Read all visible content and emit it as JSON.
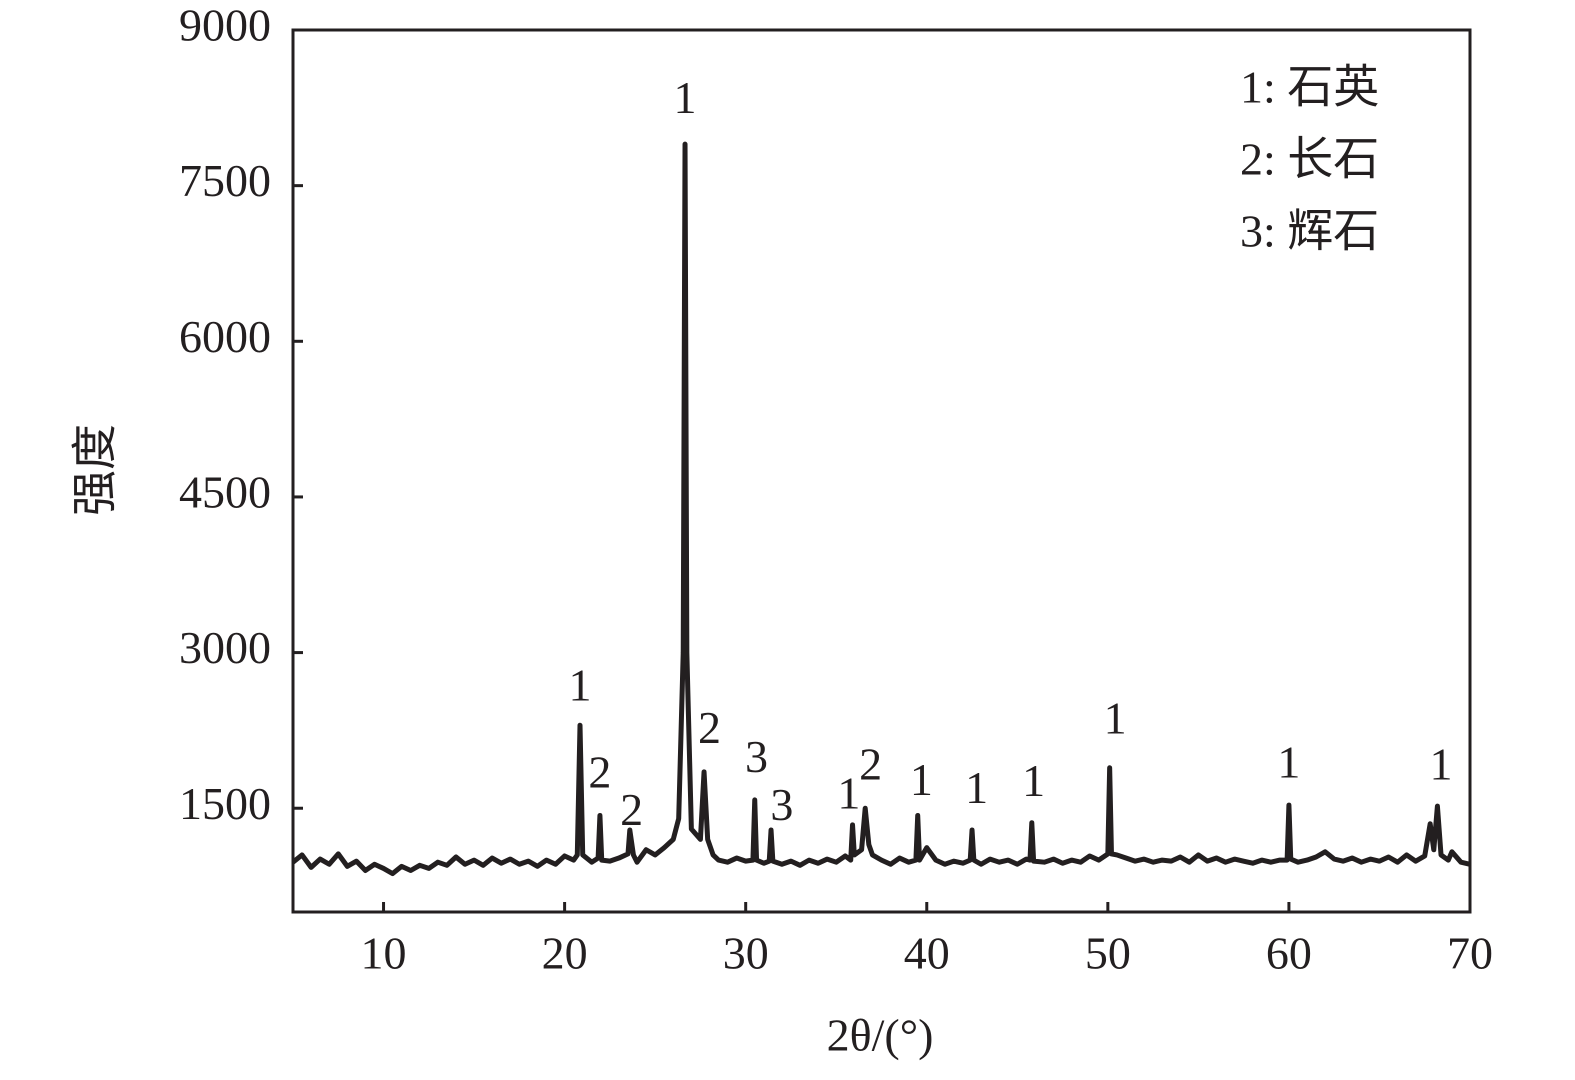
{
  "chart_data": {
    "type": "line",
    "y_label": "强度",
    "x_label": "2θ/(°)",
    "xlim": [
      5,
      70
    ],
    "xticks": [
      10,
      20,
      30,
      40,
      50,
      60,
      70
    ],
    "ylim": [
      500,
      9000
    ],
    "yticks": [
      1500,
      3000,
      4500,
      6000,
      7500,
      9000
    ],
    "color": "#231f20",
    "legend_text": [
      "1: 石英",
      "2: 长石",
      "3: 辉石"
    ],
    "annotations": [
      {
        "text": "1",
        "x": 20.85,
        "y": 2640
      },
      {
        "text": "2",
        "x": 21.95,
        "y": 1800
      },
      {
        "text": "2",
        "x": 23.7,
        "y": 1440
      },
      {
        "text": "1",
        "x": 26.65,
        "y": 8300
      },
      {
        "text": "2",
        "x": 28.0,
        "y": 2230
      },
      {
        "text": "3",
        "x": 30.6,
        "y": 1950
      },
      {
        "text": "3",
        "x": 32.0,
        "y": 1490
      },
      {
        "text": "1",
        "x": 35.7,
        "y": 1600
      },
      {
        "text": "2",
        "x": 36.9,
        "y": 1880
      },
      {
        "text": "1",
        "x": 39.7,
        "y": 1730
      },
      {
        "text": "1",
        "x": 42.75,
        "y": 1650
      },
      {
        "text": "1",
        "x": 45.9,
        "y": 1720
      },
      {
        "text": "1",
        "x": 50.4,
        "y": 2320
      },
      {
        "text": "1",
        "x": 60.0,
        "y": 1900
      },
      {
        "text": "1",
        "x": 68.4,
        "y": 1880
      }
    ],
    "x": [
      5,
      5.5,
      6,
      6.5,
      7,
      7.5,
      8,
      8.5,
      9,
      9.5,
      10,
      10.5,
      11,
      11.5,
      12,
      12.5,
      13,
      13.5,
      14,
      14.5,
      15,
      15.5,
      16,
      16.5,
      17,
      17.5,
      18,
      18.5,
      19,
      19.5,
      20,
      20.5,
      20.7,
      20.85,
      21,
      21.5,
      21.85,
      21.95,
      22.05,
      22.5,
      23,
      23.5,
      23.6,
      23.8,
      24,
      24.5,
      25,
      25.5,
      26,
      26.3,
      26.55,
      26.65,
      26.75,
      27,
      27.5,
      27.7,
      27.9,
      28.2,
      28.5,
      29,
      29.5,
      30,
      30.4,
      30.5,
      30.6,
      31,
      31.3,
      31.4,
      31.5,
      32,
      32.5,
      33,
      33.5,
      34,
      34.5,
      35,
      35.5,
      35.8,
      35.9,
      36,
      36.4,
      36.6,
      36.8,
      37,
      37.5,
      38,
      38.5,
      39,
      39.4,
      39.5,
      39.6,
      40,
      40.5,
      41,
      41.5,
      42,
      42.4,
      42.5,
      42.6,
      43,
      43.5,
      44,
      44.5,
      45,
      45.5,
      45.7,
      45.8,
      45.9,
      46.5,
      47,
      47.5,
      48,
      48.5,
      49,
      49.5,
      50,
      50.1,
      50.2,
      50.5,
      51,
      51.5,
      52,
      52.5,
      53,
      53.5,
      54,
      54.5,
      55,
      55.5,
      56,
      56.5,
      57,
      57.5,
      58,
      58.5,
      59,
      59.5,
      59.9,
      60,
      60.1,
      60.5,
      61,
      61.5,
      62,
      62.5,
      63,
      63.5,
      64,
      64.5,
      65,
      65.5,
      66,
      66.5,
      67,
      67.5,
      67.8,
      68,
      68.2,
      68.4,
      68.8,
      69,
      69.5,
      70
    ],
    "values": [
      980,
      1050,
      930,
      1010,
      960,
      1060,
      940,
      990,
      900,
      960,
      920,
      870,
      940,
      900,
      950,
      920,
      980,
      950,
      1030,
      960,
      1000,
      950,
      1020,
      970,
      1010,
      960,
      990,
      940,
      1000,
      960,
      1040,
      1000,
      1050,
      2300,
      1050,
      980,
      1020,
      1430,
      1000,
      990,
      1020,
      1060,
      1290,
      1050,
      980,
      1100,
      1050,
      1120,
      1200,
      1400,
      3000,
      7900,
      3000,
      1300,
      1200,
      1850,
      1200,
      1050,
      1000,
      980,
      1020,
      990,
      1000,
      1580,
      1000,
      970,
      990,
      1290,
      990,
      960,
      990,
      950,
      1000,
      970,
      1010,
      980,
      1040,
      1000,
      1340,
      1050,
      1100,
      1500,
      1150,
      1050,
      1000,
      960,
      1020,
      980,
      1000,
      1430,
      1000,
      1120,
      1000,
      960,
      990,
      970,
      1000,
      1290,
      1000,
      960,
      1010,
      980,
      1000,
      960,
      1010,
      1000,
      1360,
      990,
      980,
      1010,
      970,
      1000,
      980,
      1040,
      1000,
      1060,
      1890,
      1060,
      1050,
      1020,
      990,
      1010,
      980,
      1000,
      990,
      1030,
      980,
      1050,
      990,
      1020,
      980,
      1010,
      990,
      970,
      1000,
      980,
      1000,
      1000,
      1530,
      1010,
      980,
      1000,
      1030,
      1080,
      1010,
      990,
      1020,
      980,
      1010,
      990,
      1030,
      980,
      1050,
      990,
      1040,
      1350,
      1100,
      1520,
      1050,
      1000,
      1080,
      980,
      960
    ]
  }
}
